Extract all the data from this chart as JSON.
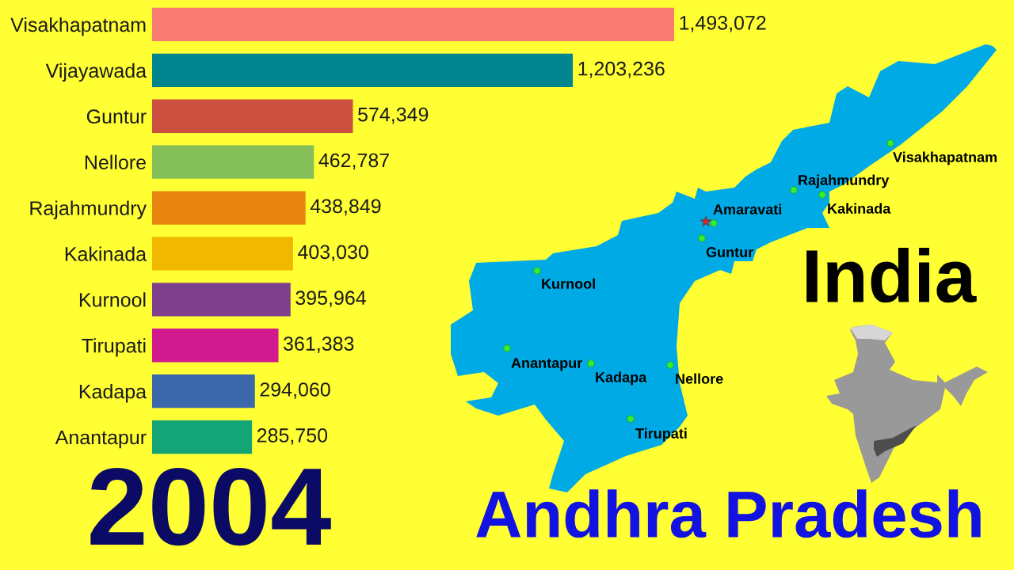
{
  "chart_data": {
    "type": "bar",
    "orientation": "horizontal",
    "title": "Andhra Pradesh",
    "subtitle": "2004",
    "categories": [
      "Visakhapatnam",
      "Vijayawada",
      "Guntur",
      "Nellore",
      "Rajahmundry",
      "Kakinada",
      "Kurnool",
      "Tirupati",
      "Kadapa",
      "Anantapur"
    ],
    "values": [
      1493072,
      1203236,
      574349,
      462787,
      438849,
      403030,
      395964,
      361383,
      294060,
      285750
    ],
    "colors": [
      "#f87c72",
      "#00848e",
      "#cb5040",
      "#84bf5a",
      "#e8850f",
      "#f0b800",
      "#7e3f8c",
      "#d01a8e",
      "#3b68aa",
      "#14a577"
    ],
    "value_labels": [
      "1,493,072",
      "1,203,236",
      "574,349",
      "462,787",
      "438,849",
      "403,030",
      "395,964",
      "361,383",
      "294,060",
      "285,750"
    ],
    "annotations": [
      "India",
      "Visakhapatnam",
      "Rajahmundry",
      "Kakinada",
      "Amaravati",
      "Guntur",
      "Kurnool",
      "Anantapur",
      "Kadapa",
      "Nellore",
      "Tirupati"
    ],
    "grid": false,
    "legend": false
  }
}
